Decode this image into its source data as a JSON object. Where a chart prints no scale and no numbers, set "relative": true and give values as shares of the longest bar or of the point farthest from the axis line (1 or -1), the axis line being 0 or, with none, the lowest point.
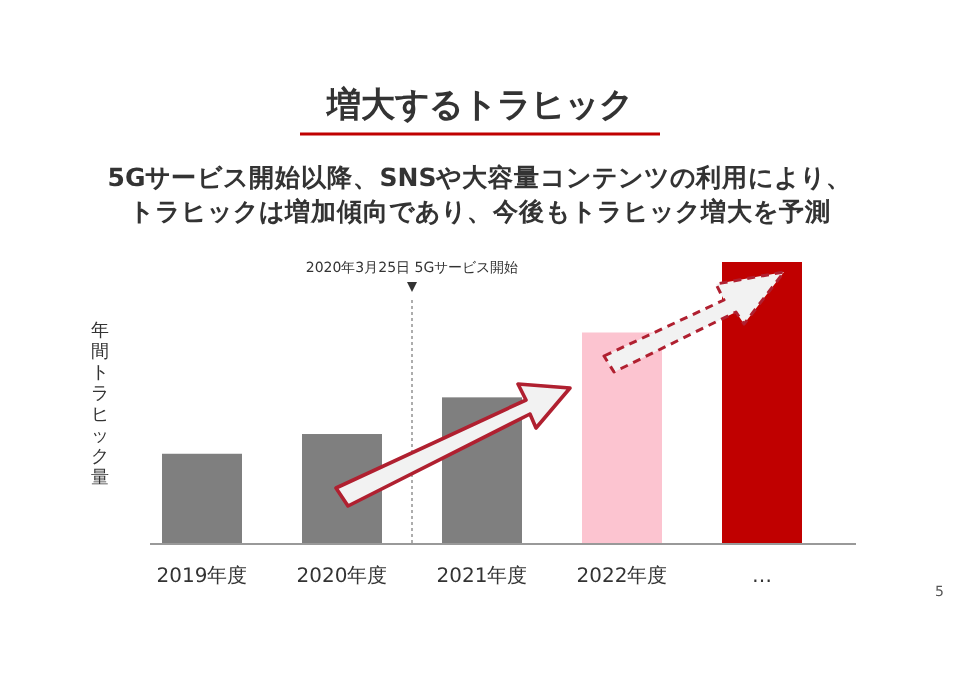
{
  "chart_data": {
    "type": "bar",
    "title": "増大するトラヒック",
    "subtitle": "5Gサービス開始以降、SNSや大容量コンテンツの利用により、トラヒックは増加傾向であり、今後もトラヒック増大を予測",
    "ylabel": "年間トラヒック量",
    "categories": [
      "2019年度",
      "2020年度",
      "2021年度",
      "2022年度",
      "…"
    ],
    "values": [
      0.32,
      0.39,
      0.52,
      0.75,
      1
    ],
    "colors": [
      "#7f7f7f",
      "#7f7f7f",
      "#7f7f7f",
      "#fcc4d0",
      "#c00000"
    ],
    "relative": true,
    "annotations": [
      "2020年3月25日 5Gサービス開始",
      "5"
    ]
  }
}
